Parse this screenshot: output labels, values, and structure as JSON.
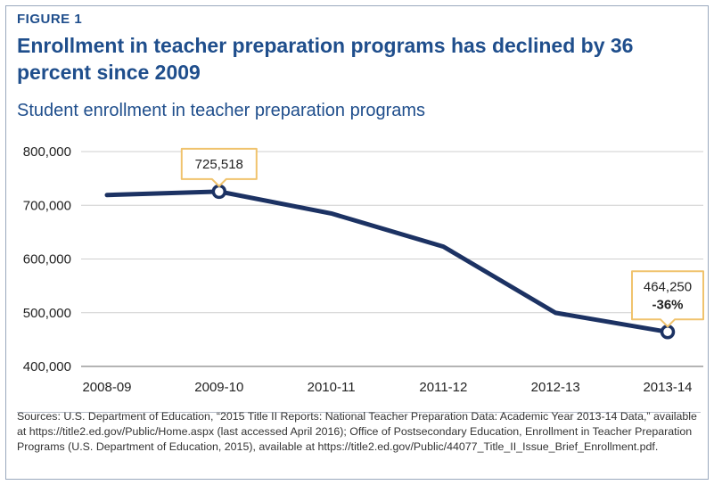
{
  "figure_label": "FIGURE 1",
  "title": "Enrollment in teacher preparation programs has declined by 36 percent since 2009",
  "subtitle": "Student enrollment in teacher preparation programs",
  "source": "Sources: U.S. Department of Education, “2015 Title II Reports: National Teacher Preparation Data: Academic Year 2013-14 Data,” available at https://title2.ed.gov/Public/Home.aspx (last accessed April 2016); Office of Postsecondary Education, Enrollment in Teacher Preparation Programs (U.S. Department of Education, 2015), available at https://title2.ed.gov/Public/44077_Title_II_Issue_Brief_Enrollment.pdf.",
  "colors": {
    "accent": "#1f4e8c",
    "line": "#1c3263",
    "grid": "#cfcfcf",
    "callout_border": "#f0c36d"
  },
  "chart_data": {
    "type": "line",
    "title": "Student enrollment in teacher preparation programs",
    "xlabel": "",
    "ylabel": "",
    "categories": [
      "2008-09",
      "2009-10",
      "2010-11",
      "2011-12",
      "2012-13",
      "2013-14"
    ],
    "series": [
      {
        "name": "Enrollment",
        "values": [
          719081,
          725518,
          684801,
          623045,
          499800,
          464250
        ]
      }
    ],
    "ylim": [
      400000,
      800000
    ],
    "yticks": [
      800000,
      700000,
      600000,
      500000,
      400000
    ],
    "ytick_labels": [
      "800,000",
      "700,000",
      "600,000",
      "500,000",
      "400,000"
    ],
    "grid": true,
    "annotations": [
      {
        "index": 1,
        "lines": [
          "725,518"
        ]
      },
      {
        "index": 5,
        "lines": [
          "464,250",
          "-36%"
        ]
      }
    ]
  }
}
